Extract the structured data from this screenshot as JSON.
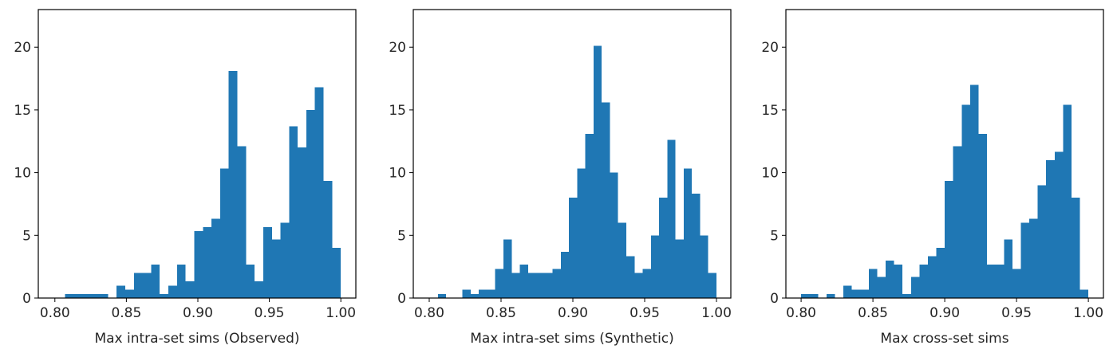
{
  "chart_data": [
    {
      "type": "histogram",
      "xlabel": "Max intra-set sims (Observed)",
      "color": "#1f77b4",
      "bins": [
        0.807,
        0.813,
        0.8191,
        0.8251,
        0.8311,
        0.8372,
        0.8432,
        0.8492,
        0.8553,
        0.8613,
        0.8673,
        0.8733,
        0.8794,
        0.8854,
        0.8914,
        0.8975,
        0.9035,
        0.9095,
        0.9156,
        0.9216,
        0.9276,
        0.9337,
        0.9397,
        0.9457,
        0.9518,
        0.9578,
        0.9638,
        0.9698,
        0.9759,
        0.9819,
        0.9879,
        0.994,
        1.0
      ],
      "values": [
        0.33,
        0.33,
        0.33,
        0.33,
        0.33,
        0,
        1.0,
        0.67,
        2.0,
        2.0,
        2.67,
        0.33,
        1.0,
        2.67,
        1.33,
        5.33,
        5.67,
        6.33,
        10.33,
        18.1,
        12.1,
        2.67,
        1.33,
        5.67,
        4.67,
        6.0,
        13.7,
        12.0,
        15.0,
        16.8,
        9.33,
        4.0
      ],
      "xlim": [
        0.7884,
        1.0105
      ],
      "ylim": [
        0,
        23
      ],
      "xticks": [
        {
          "value": 0.8,
          "label": "0.80"
        },
        {
          "value": 0.85,
          "label": "0.85"
        },
        {
          "value": 0.9,
          "label": "0.90"
        },
        {
          "value": 0.95,
          "label": "0.95"
        },
        {
          "value": 1.0,
          "label": "1.00"
        }
      ],
      "yticks": [
        0,
        5,
        10,
        15,
        20
      ]
    },
    {
      "type": "histogram",
      "xlabel": "Max intra-set sims (Synthetic)",
      "color": "#1f77b4",
      "bins": [
        0.806,
        0.8117,
        0.8174,
        0.8231,
        0.8288,
        0.8345,
        0.8402,
        0.8459,
        0.8516,
        0.8574,
        0.8631,
        0.8688,
        0.8745,
        0.8802,
        0.8859,
        0.8916,
        0.8973,
        0.903,
        0.9087,
        0.9144,
        0.9201,
        0.9258,
        0.9315,
        0.9372,
        0.943,
        0.9487,
        0.9544,
        0.9601,
        0.9658,
        0.9715,
        0.9772,
        0.9829,
        0.9886,
        0.9943,
        1.0
      ],
      "values": [
        0.33,
        0,
        0,
        0.67,
        0.33,
        0.67,
        0.67,
        2.33,
        4.67,
        2.0,
        2.67,
        2.0,
        2.0,
        2.0,
        2.33,
        3.67,
        8.0,
        10.33,
        13.1,
        20.1,
        15.6,
        10.0,
        6.0,
        3.33,
        2.0,
        2.33,
        5.0,
        8.0,
        12.6,
        4.67,
        10.33,
        8.33,
        5.0,
        2.0
      ],
      "xlim": [
        0.7889,
        1.01
      ],
      "ylim": [
        0,
        23
      ],
      "xticks": [
        {
          "value": 0.8,
          "label": "0.80"
        },
        {
          "value": 0.85,
          "label": "0.85"
        },
        {
          "value": 0.9,
          "label": "0.90"
        },
        {
          "value": 0.95,
          "label": "0.95"
        },
        {
          "value": 1.0,
          "label": "1.00"
        }
      ],
      "yticks": [
        0,
        5,
        10,
        15,
        20
      ]
    },
    {
      "type": "histogram",
      "xlabel": "Max cross-set sims",
      "color": "#1f77b4",
      "bins": [
        0.8,
        0.8059,
        0.8118,
        0.8176,
        0.8235,
        0.8294,
        0.8353,
        0.8412,
        0.8471,
        0.8529,
        0.8588,
        0.8647,
        0.8706,
        0.8765,
        0.8824,
        0.8882,
        0.8941,
        0.9,
        0.9059,
        0.9118,
        0.9176,
        0.9235,
        0.9294,
        0.9353,
        0.9412,
        0.9471,
        0.9529,
        0.9588,
        0.9647,
        0.9706,
        0.9765,
        0.9824,
        0.9882,
        0.9941,
        1.0
      ],
      "values": [
        0.33,
        0.33,
        0,
        0.33,
        0,
        1.0,
        0.67,
        0.67,
        2.33,
        1.67,
        3.0,
        2.67,
        0.33,
        1.67,
        2.67,
        3.33,
        4.0,
        9.33,
        12.1,
        15.4,
        17.0,
        13.1,
        2.67,
        2.67,
        4.67,
        2.33,
        6.0,
        6.33,
        9.0,
        11.0,
        11.67,
        15.4,
        8.0,
        0.67
      ],
      "xlim": [
        0.7894,
        1.0105
      ],
      "ylim": [
        0,
        23
      ],
      "xticks": [
        {
          "value": 0.8,
          "label": "0.80"
        },
        {
          "value": 0.85,
          "label": "0.85"
        },
        {
          "value": 0.9,
          "label": "0.90"
        },
        {
          "value": 0.95,
          "label": "0.95"
        },
        {
          "value": 1.0,
          "label": "1.00"
        }
      ],
      "yticks": [
        0,
        5,
        10,
        15,
        20
      ]
    }
  ]
}
